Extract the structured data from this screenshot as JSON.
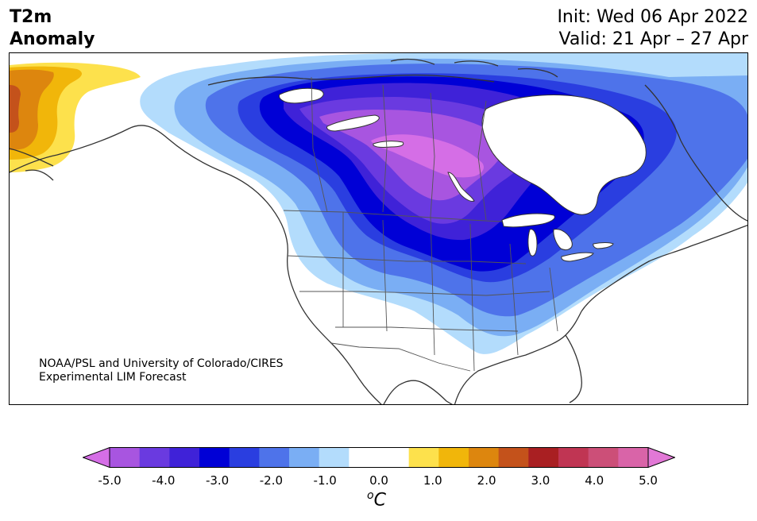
{
  "header": {
    "title_line1": "T2m",
    "title_line2": "Anomaly",
    "init": "Init: Wed 06 Apr 2022",
    "valid": "Valid: 21 Apr – 27 Apr"
  },
  "credit": {
    "line1": "NOAA/PSL and University of Colorado/CIRES",
    "line2": "Experimental LIM Forecast"
  },
  "colorbar": {
    "ticks": [
      "-5.0",
      "-4.0",
      "-3.0",
      "-2.0",
      "-1.0",
      "0.0",
      "1.0",
      "2.0",
      "3.0",
      "4.0",
      "5.0"
    ],
    "unit_base": "C",
    "unit_super": "o",
    "colors": [
      "#d56ee6",
      "#a855e0",
      "#6a3ae0",
      "#3f22d8",
      "#0000d6",
      "#2a3ee0",
      "#4e73ea",
      "#7aaef4",
      "#b3dcfc",
      "#ffffff",
      "#ffffff",
      "#fde14c",
      "#f1b60a",
      "#dd860e",
      "#c4521b",
      "#a91f22",
      "#c03553",
      "#cc4f78",
      "#d964a8",
      "#e278d6"
    ]
  },
  "map": {
    "anomaly_colors": {
      "c_m05": "#b3dcfc",
      "c_m10": "#7aaef4",
      "c_m15": "#4e73ea",
      "c_m20": "#2a3ee0",
      "c_m25": "#0000d6",
      "c_m30": "#3f22d8",
      "c_m35": "#6a3ae0",
      "c_m40": "#a855e0",
      "c_m45": "#d56ee6",
      "c_p05": "#fde14c",
      "c_p10": "#f1b60a",
      "c_p15": "#dd860e",
      "c_p20": "#c4521b"
    }
  }
}
